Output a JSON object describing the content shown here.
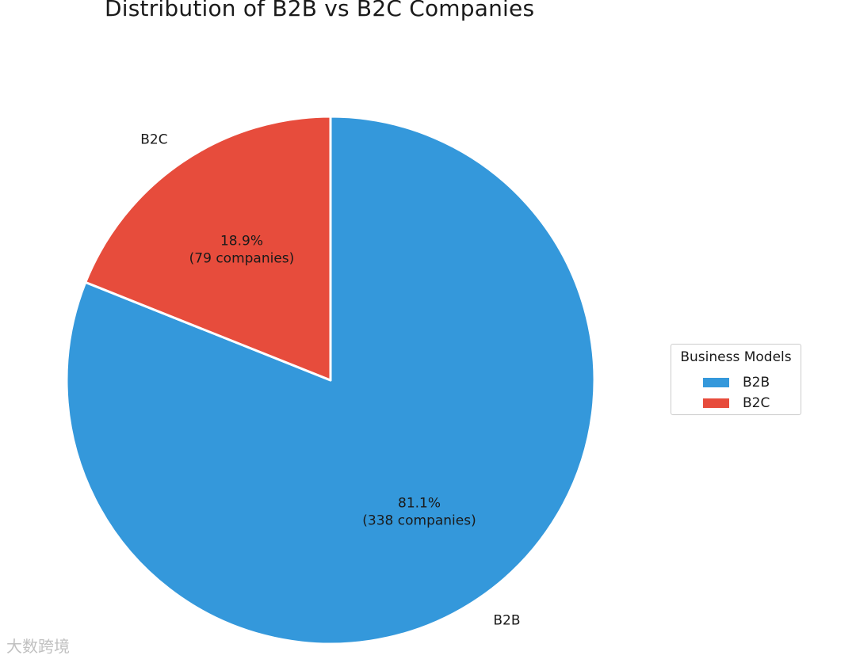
{
  "chart_data": {
    "type": "pie",
    "title": "Distribution of B2B vs B2C Companies",
    "slices": [
      {
        "label": "B2B",
        "value": 338,
        "percent_label": "81.1%",
        "count_label": "(338 companies)",
        "color": "#3498db"
      },
      {
        "label": "B2C",
        "value": 79,
        "percent_label": "18.9%",
        "count_label": "(79 companies)",
        "color": "#e74c3c"
      }
    ],
    "start_angle_deg": 90,
    "direction": "clockwise",
    "legend": {
      "title": "Business Models",
      "placement": "center-right",
      "entries": [
        "B2B",
        "B2C"
      ]
    }
  },
  "watermark": "大数跨境"
}
